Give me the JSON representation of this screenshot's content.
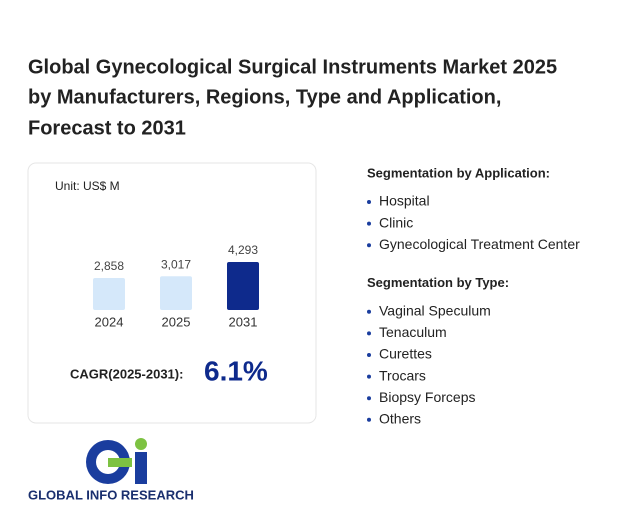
{
  "title_lines": [
    "Global Gynecological Surgical Instruments Market 2025",
    "by Manufacturers, Regions, Type and Application,",
    "Forecast to 2031"
  ],
  "chart_data": {
    "type": "bar",
    "unit": "Unit: US$ M",
    "categories": [
      "2024",
      "2025",
      "2031"
    ],
    "values": [
      2858,
      3017,
      4293
    ],
    "value_labels": [
      "2,858",
      "3,017",
      "4,293"
    ],
    "colors": [
      "#d5e8fa",
      "#d5e8fa",
      "#0e2a8c"
    ]
  },
  "cagr": {
    "label": "CAGR(2025-2031):",
    "value": "6.1%"
  },
  "segments": [
    {
      "heading": "Segmentation by Application:",
      "items": [
        "Hospital",
        "Clinic",
        "Gynecological Treatment Center"
      ]
    },
    {
      "heading": "Segmentation by Type:",
      "items": [
        "Vaginal Speculum",
        "Tenaculum",
        "Curettes",
        "Trocars",
        "Biopsy Forceps",
        "Others"
      ]
    }
  ],
  "logo_text": "GLOBAL INFO RESEARCH"
}
